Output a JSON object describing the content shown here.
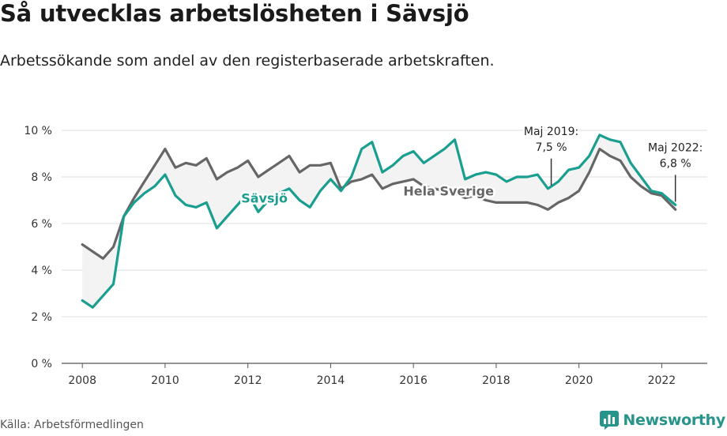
{
  "title": "Så utvecklas arbetslösheten i Sävsjö",
  "subtitle": "Arbetssökande som andel av den registerbaserade arbetskraften.",
  "source": "Källa: Arbetsförmedlingen",
  "brand": {
    "name": "Newsworthy",
    "icon": "newsworthy-logo-icon",
    "color": "#26948a"
  },
  "chart_data": {
    "type": "line",
    "ylim": [
      0,
      10
    ],
    "xlim": [
      2007.5,
      2023.1
    ],
    "y_ticks": [
      "0 %",
      "2 %",
      "4 %",
      "6 %",
      "8 %",
      "10 %"
    ],
    "x_ticks": [
      "2008",
      "2010",
      "2012",
      "2014",
      "2016",
      "2018",
      "2020",
      "2022"
    ],
    "grid": true,
    "series": [
      {
        "name": "Sävsjö",
        "color": "#1a9e8f",
        "label_at": [
          2012.4,
          6.9
        ],
        "x": [
          2008.0,
          2008.25,
          2008.5,
          2008.75,
          2009.0,
          2009.25,
          2009.5,
          2009.75,
          2010.0,
          2010.25,
          2010.5,
          2010.75,
          2011.0,
          2011.25,
          2011.5,
          2011.75,
          2012.0,
          2012.25,
          2012.5,
          2012.75,
          2013.0,
          2013.25,
          2013.5,
          2013.75,
          2014.0,
          2014.25,
          2014.5,
          2014.75,
          2015.0,
          2015.25,
          2015.5,
          2015.75,
          2016.0,
          2016.25,
          2016.5,
          2016.75,
          2017.0,
          2017.25,
          2017.5,
          2017.75,
          2018.0,
          2018.25,
          2018.5,
          2018.75,
          2019.0,
          2019.25,
          2019.5,
          2019.75,
          2020.0,
          2020.25,
          2020.5,
          2020.75,
          2021.0,
          2021.25,
          2021.5,
          2021.75,
          2022.0,
          2022.33
        ],
        "values": [
          2.7,
          2.4,
          2.9,
          3.4,
          6.3,
          6.9,
          7.3,
          7.6,
          8.1,
          7.2,
          6.8,
          6.7,
          6.9,
          5.8,
          6.3,
          6.8,
          7.3,
          6.5,
          7.0,
          7.3,
          7.5,
          7.0,
          6.7,
          7.4,
          7.9,
          7.4,
          8.0,
          9.2,
          9.5,
          8.2,
          8.5,
          8.9,
          9.1,
          8.6,
          8.9,
          9.2,
          9.6,
          7.9,
          8.1,
          8.2,
          8.1,
          7.8,
          8.0,
          8.0,
          8.1,
          7.5,
          7.8,
          8.3,
          8.4,
          8.9,
          9.8,
          9.6,
          9.5,
          8.6,
          8.0,
          7.4,
          7.3,
          6.8
        ]
      },
      {
        "name": "Hela Sverige",
        "color": "#666666",
        "label_at": [
          2016.85,
          7.2
        ],
        "x": [
          2008.0,
          2008.25,
          2008.5,
          2008.75,
          2009.0,
          2009.25,
          2009.5,
          2009.75,
          2010.0,
          2010.25,
          2010.5,
          2010.75,
          2011.0,
          2011.25,
          2011.5,
          2011.75,
          2012.0,
          2012.25,
          2012.5,
          2012.75,
          2013.0,
          2013.25,
          2013.5,
          2013.75,
          2014.0,
          2014.25,
          2014.5,
          2014.75,
          2015.0,
          2015.25,
          2015.5,
          2015.75,
          2016.0,
          2016.25,
          2016.5,
          2016.75,
          2017.0,
          2017.25,
          2017.5,
          2017.75,
          2018.0,
          2018.25,
          2018.5,
          2018.75,
          2019.0,
          2019.25,
          2019.5,
          2019.75,
          2020.0,
          2020.25,
          2020.5,
          2020.75,
          2021.0,
          2021.25,
          2021.5,
          2021.75,
          2022.0,
          2022.33
        ],
        "values": [
          5.1,
          4.8,
          4.5,
          5.0,
          6.3,
          7.1,
          7.8,
          8.5,
          9.2,
          8.4,
          8.6,
          8.5,
          8.8,
          7.9,
          8.2,
          8.4,
          8.7,
          8.0,
          8.3,
          8.6,
          8.9,
          8.2,
          8.5,
          8.5,
          8.6,
          7.5,
          7.8,
          7.9,
          8.1,
          7.5,
          7.7,
          7.8,
          7.9,
          7.6,
          7.5,
          7.4,
          7.3,
          7.1,
          7.2,
          7.0,
          6.9,
          6.9,
          6.9,
          6.9,
          6.8,
          6.6,
          6.9,
          7.1,
          7.4,
          8.2,
          9.2,
          8.9,
          8.7,
          8.0,
          7.6,
          7.3,
          7.2,
          6.6
        ]
      }
    ],
    "annotations": [
      {
        "lines": [
          "Maj 2019:",
          "7,5 %"
        ],
        "x": 2019.33,
        "y": 7.5
      },
      {
        "lines": [
          "Maj 2022:",
          "6,8 %"
        ],
        "x": 2022.33,
        "y": 6.8
      }
    ]
  }
}
